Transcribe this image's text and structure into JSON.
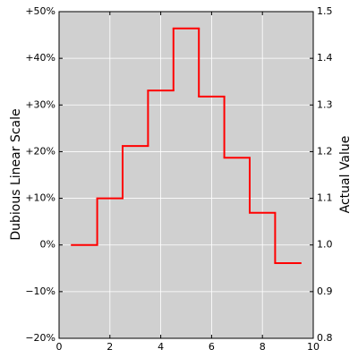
{
  "chart_data": {
    "type": "step",
    "y_label": "Dubious Linear Scale",
    "y2_label": "Actual Value",
    "x": [
      1,
      2,
      3,
      4,
      5,
      6,
      7,
      8,
      9
    ],
    "series": [
      {
        "color": "#ff0000",
        "axis": "y2",
        "values": [
          1.0,
          1.1,
          1.212,
          1.331,
          1.464,
          1.318,
          1.187,
          1.069,
          0.961
        ]
      }
    ],
    "xlim": [
      0,
      10
    ],
    "xticks": [
      0,
      2,
      4,
      6,
      8,
      10
    ],
    "ylim": [
      -20,
      50
    ],
    "yticks": [
      {
        "value": -20,
        "label": "−20%"
      },
      {
        "value": -10,
        "label": "−10%"
      },
      {
        "value": 0,
        "label": "0%"
      },
      {
        "value": 10,
        "label": "+10%"
      },
      {
        "value": 20,
        "label": "+20%"
      },
      {
        "value": 30,
        "label": "+30%"
      },
      {
        "value": 40,
        "label": "+40%"
      },
      {
        "value": 50,
        "label": "+50%"
      }
    ],
    "y2lim": [
      0.8,
      1.5
    ],
    "y2ticks": [
      0.8,
      0.9,
      {
        "value": 1,
        "label": "1.0"
      },
      1.1,
      1.2,
      1.3,
      1.4,
      1.5
    ],
    "grid": true,
    "background": "#d0d0d0"
  }
}
